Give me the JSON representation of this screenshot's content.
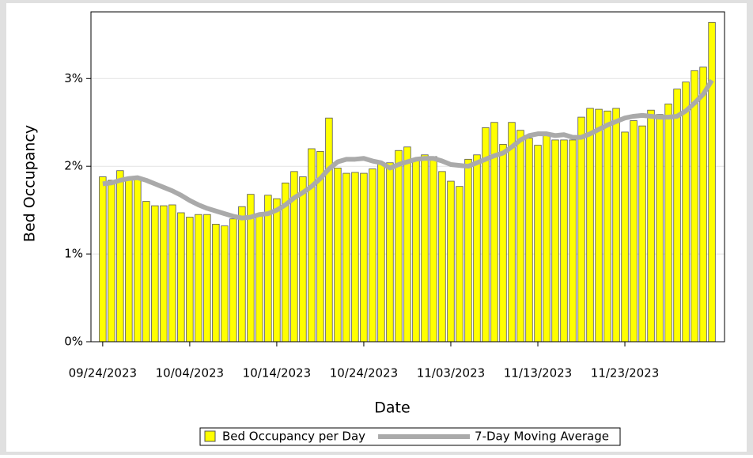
{
  "chart_data": {
    "type": "bar",
    "x_label": "Date",
    "y_label": "Bed Occupancy",
    "x": [
      "09/24/2023",
      "09/25/2023",
      "09/26/2023",
      "09/27/2023",
      "09/28/2023",
      "09/29/2023",
      "09/30/2023",
      "10/01/2023",
      "10/02/2023",
      "10/03/2023",
      "10/04/2023",
      "10/05/2023",
      "10/06/2023",
      "10/07/2023",
      "10/08/2023",
      "10/09/2023",
      "10/10/2023",
      "10/11/2023",
      "10/12/2023",
      "10/13/2023",
      "10/14/2023",
      "10/15/2023",
      "10/16/2023",
      "10/17/2023",
      "10/18/2023",
      "10/19/2023",
      "10/20/2023",
      "10/21/2023",
      "10/22/2023",
      "10/23/2023",
      "10/24/2023",
      "10/25/2023",
      "10/26/2023",
      "10/27/2023",
      "10/28/2023",
      "10/29/2023",
      "10/30/2023",
      "10/31/2023",
      "11/01/2023",
      "11/02/2023",
      "11/03/2023",
      "11/04/2023",
      "11/05/2023",
      "11/06/2023",
      "11/07/2023",
      "11/08/2023",
      "11/09/2023",
      "11/10/2023",
      "11/11/2023",
      "11/12/2023",
      "11/13/2023",
      "11/14/2023",
      "11/15/2023",
      "11/16/2023",
      "11/17/2023",
      "11/18/2023",
      "11/19/2023",
      "11/20/2023",
      "11/21/2023",
      "11/22/2023",
      "11/23/2023",
      "11/24/2023",
      "11/25/2023",
      "11/26/2023",
      "11/27/2023",
      "11/28/2023",
      "11/29/2023",
      "11/30/2023",
      "12/01/2023",
      "12/02/2023",
      "12/03/2023"
    ],
    "series": [
      {
        "name": "Bed Occupancy per Day",
        "type": "bar",
        "color": "#ffff00",
        "values": [
          1.88,
          1.84,
          1.95,
          1.86,
          1.86,
          1.6,
          1.55,
          1.55,
          1.56,
          1.47,
          1.42,
          1.45,
          1.45,
          1.34,
          1.32,
          1.4,
          1.54,
          1.68,
          1.45,
          1.67,
          1.63,
          1.81,
          1.94,
          1.88,
          2.2,
          2.17,
          2.55,
          1.98,
          1.92,
          1.93,
          1.92,
          1.97,
          2.04,
          2.04,
          2.18,
          2.22,
          2.08,
          2.13,
          2.11,
          1.94,
          1.83,
          1.77,
          2.08,
          2.13,
          2.44,
          2.5,
          2.25,
          2.5,
          2.41,
          2.32,
          2.24,
          2.38,
          2.3,
          2.3,
          2.3,
          2.56,
          2.66,
          2.65,
          2.63,
          2.66,
          2.39,
          2.52,
          2.46,
          2.64,
          2.59,
          2.71,
          2.88,
          2.96,
          3.09,
          3.13,
          3.64
        ]
      },
      {
        "name": "7-Day Moving Average",
        "type": "line",
        "color": "#aaaaaa",
        "values": [
          1.8,
          1.81,
          1.84,
          1.86,
          1.87,
          1.84,
          1.8,
          1.76,
          1.72,
          1.67,
          1.61,
          1.56,
          1.52,
          1.49,
          1.46,
          1.43,
          1.41,
          1.42,
          1.45,
          1.46,
          1.5,
          1.56,
          1.64,
          1.7,
          1.77,
          1.86,
          1.97,
          2.05,
          2.08,
          2.08,
          2.09,
          2.06,
          2.04,
          1.98,
          2.02,
          2.05,
          2.08,
          2.09,
          2.09,
          2.06,
          2.02,
          2.01,
          2.0,
          2.04,
          2.08,
          2.12,
          2.15,
          2.22,
          2.3,
          2.35,
          2.37,
          2.37,
          2.35,
          2.36,
          2.33,
          2.33,
          2.37,
          2.42,
          2.47,
          2.51,
          2.55,
          2.57,
          2.58,
          2.57,
          2.56,
          2.56,
          2.57,
          2.63,
          2.72,
          2.82,
          2.98
        ]
      }
    ],
    "ylim": [
      0,
      3.76
    ],
    "yticks": [
      {
        "value": 0,
        "label": "0%"
      },
      {
        "value": 1,
        "label": "1%"
      },
      {
        "value": 2,
        "label": "2%"
      },
      {
        "value": 3,
        "label": "3%"
      }
    ],
    "xticks": [
      "09/24/2023",
      "10/04/2023",
      "10/14/2023",
      "10/24/2023",
      "11/03/2023",
      "11/13/2023",
      "11/23/2023"
    ],
    "grid": true,
    "legend": "bottom"
  }
}
